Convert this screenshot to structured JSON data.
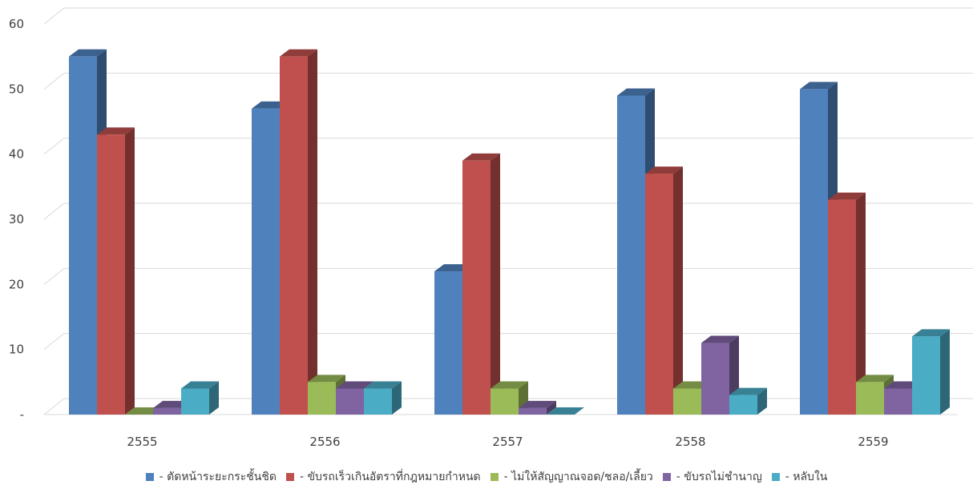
{
  "chart_data": {
    "type": "bar",
    "title": "",
    "xlabel": "",
    "ylabel": "",
    "categories": [
      "2555",
      "2556",
      "2557",
      "2558",
      "2559"
    ],
    "ylim": [
      0,
      60
    ],
    "yticks": [
      "-",
      "10",
      "20",
      "30",
      "40",
      "50",
      "60"
    ],
    "grid": true,
    "legend_position": "bottom",
    "series": [
      {
        "name": "- ตัดหน้าระยะกระชั้นชิด",
        "color": "#4f81bd",
        "values": [
          55,
          47,
          22,
          49,
          50
        ]
      },
      {
        "name": "- ขับรถเร็วเกินอัตราที่กฎหมายกำหนด",
        "color": "#c0504d",
        "values": [
          43,
          55,
          39,
          37,
          33
        ]
      },
      {
        "name": "- ไม่ให้สัญญาณจอด/ชลอ/เลี้ยว",
        "color": "#9bbb59",
        "values": [
          0,
          5,
          4,
          4,
          5
        ]
      },
      {
        "name": "- ขับรถไม่ชำนาญ",
        "color": "#8064a2",
        "values": [
          1,
          4,
          1,
          11,
          4
        ]
      },
      {
        "name": "- หลับใน",
        "color": "#4bacc6",
        "values": [
          4,
          4,
          0,
          3,
          12
        ]
      }
    ]
  }
}
